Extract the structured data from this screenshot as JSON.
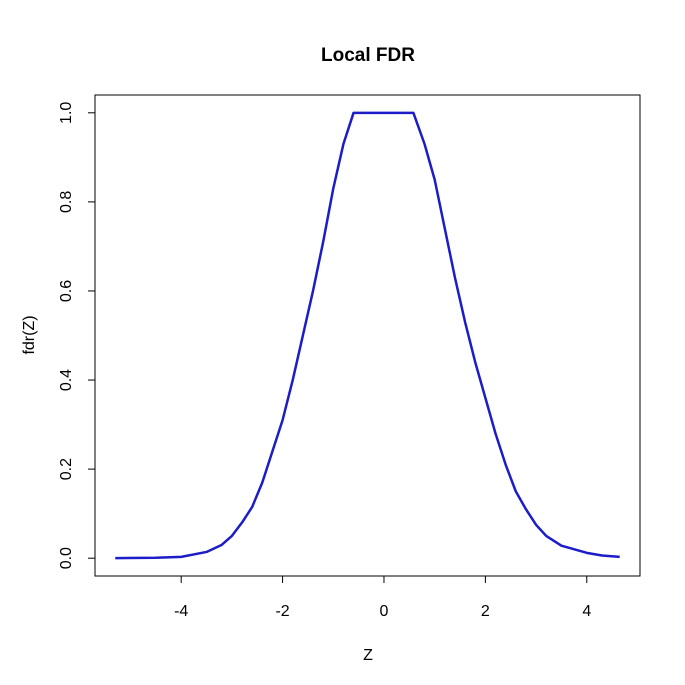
{
  "chart_data": {
    "type": "line",
    "title": "Local FDR",
    "x_label": "Z",
    "y_label": "fdr(Z)",
    "x": [
      -5.3,
      -4.5,
      -4.0,
      -3.5,
      -3.2,
      -3.0,
      -2.8,
      -2.6,
      -2.4,
      -2.2,
      -2.0,
      -1.8,
      -1.6,
      -1.4,
      -1.2,
      -1.0,
      -0.8,
      -0.6,
      0.58,
      0.8,
      1.0,
      1.2,
      1.4,
      1.6,
      1.8,
      2.0,
      2.2,
      2.4,
      2.6,
      2.8,
      3.0,
      3.2,
      3.5,
      4.0,
      4.3,
      4.65
    ],
    "series": [
      {
        "name": "fdr",
        "color": "#1c1cc8",
        "values": [
          0.0,
          0.001,
          0.003,
          0.014,
          0.03,
          0.05,
          0.08,
          0.115,
          0.17,
          0.24,
          0.31,
          0.4,
          0.5,
          0.6,
          0.71,
          0.83,
          0.93,
          1.0,
          1.0,
          0.93,
          0.85,
          0.74,
          0.63,
          0.53,
          0.44,
          0.36,
          0.28,
          0.21,
          0.15,
          0.11,
          0.075,
          0.05,
          0.028,
          0.012,
          0.006,
          0.003
        ]
      }
    ],
    "xlim": [
      -5.7,
      5.05
    ],
    "xticks": [
      -4,
      -2,
      0,
      2,
      4
    ],
    "ylim": [
      -0.04,
      1.04
    ],
    "yticks": [
      {
        "value": 0.0,
        "label": "0.0"
      },
      0.2,
      0.4,
      0.6,
      0.8,
      {
        "value": 1.0,
        "label": "1.0"
      }
    ]
  }
}
